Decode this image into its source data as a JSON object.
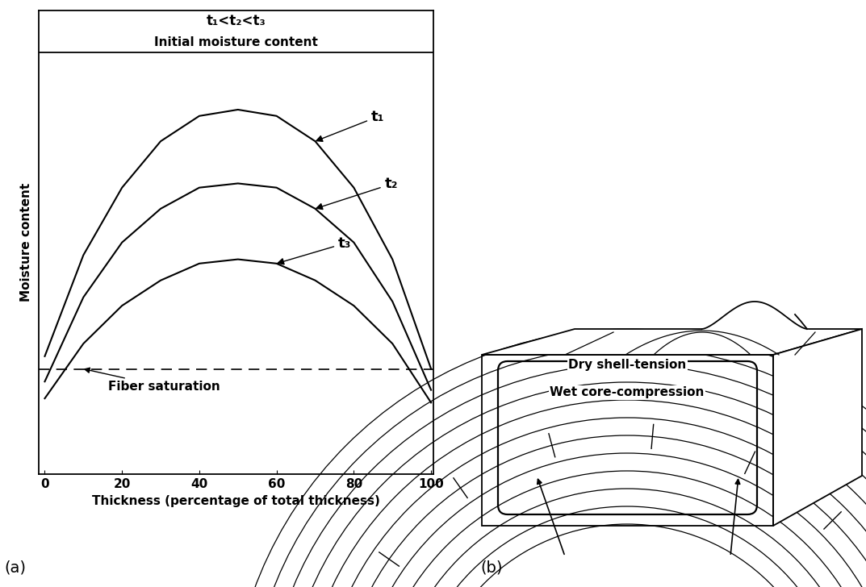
{
  "chart_data": {
    "type": "line",
    "header": "t₁<t₂<t₃",
    "x_label": "Thickness (percentage of total thickness)",
    "y_label": "Moisture content",
    "x": [
      0,
      10,
      20,
      30,
      40,
      50,
      60,
      70,
      80,
      90,
      100
    ],
    "series": [
      {
        "name": "t₁",
        "color": "#000000",
        "values": [
          28,
          52,
          68,
          79,
          85,
          86.5,
          85,
          79,
          68,
          51,
          25
        ]
      },
      {
        "name": "t₂",
        "color": "#000000",
        "values": [
          22,
          42,
          55,
          63,
          68,
          69,
          68,
          63,
          55,
          41,
          20
        ]
      },
      {
        "name": "t₃",
        "color": "#000000",
        "values": [
          18,
          31,
          40,
          46,
          50,
          51,
          50,
          46,
          40,
          31,
          17
        ]
      }
    ],
    "reference_lines": [
      {
        "label": "Initial moisture content",
        "value": 100,
        "line_style": "solid"
      },
      {
        "label": "Fiber saturation",
        "value": 25,
        "line_style": "dashed"
      }
    ],
    "xlim": [
      -1.5,
      100.5
    ],
    "ylim": [
      0,
      110
    ],
    "xticks": [
      0,
      20,
      40,
      60,
      80,
      100
    ],
    "tick_labels": "x",
    "grid": false
  },
  "diagram": {
    "labels": [
      "Dry shell-tension",
      "Wet core-compression"
    ]
  },
  "panel_labels": [
    "(a)",
    "(b)"
  ]
}
